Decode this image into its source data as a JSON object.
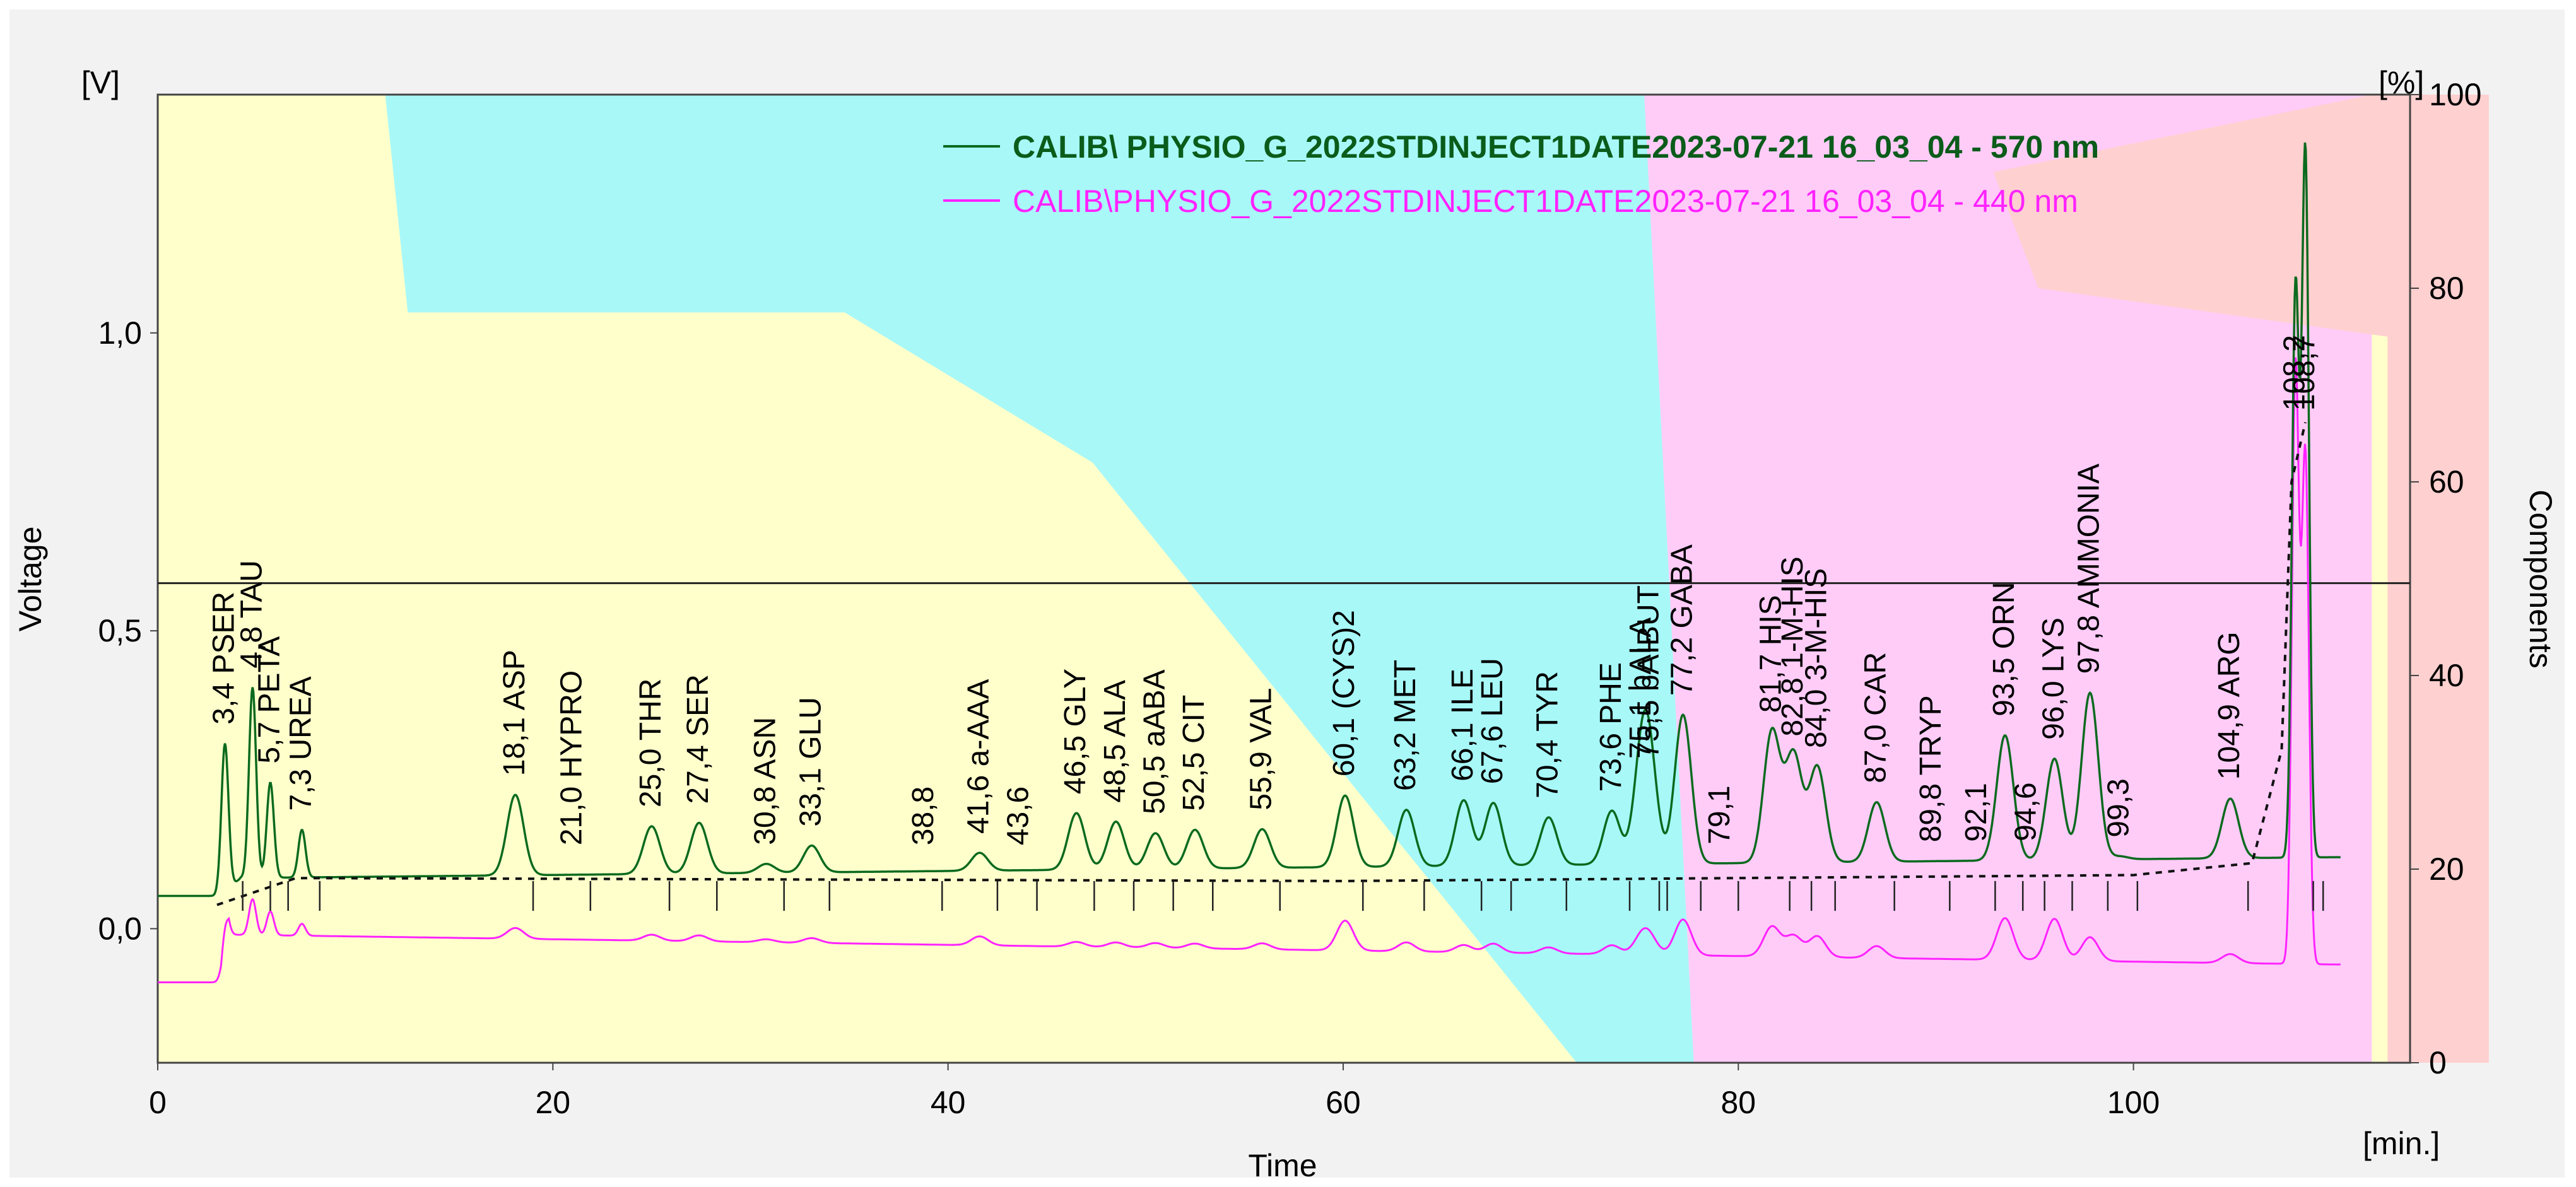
{
  "chart_data": {
    "type": "line",
    "title": "",
    "xlabel": "Time",
    "xunit": "[min.]",
    "ylabel": "Voltage",
    "yunit": "[V]",
    "y2label": "Components",
    "y2unit": "[%]",
    "xlim": [
      0,
      114
    ],
    "ylim": [
      -0.225,
      1.4
    ],
    "y2lim": [
      0,
      100
    ],
    "x_ticks": [
      {
        "v": 0,
        "t": "0"
      },
      {
        "v": 20,
        "t": "20"
      },
      {
        "v": 40,
        "t": "40"
      },
      {
        "v": 60,
        "t": "60"
      },
      {
        "v": 80,
        "t": "80"
      },
      {
        "v": 100,
        "t": "100"
      }
    ],
    "y_ticks": [
      {
        "v": 0,
        "t": "0,0"
      },
      {
        "v": 0.5,
        "t": "0,5"
      },
      {
        "v": 1.0,
        "t": "1,0"
      }
    ],
    "y2_ticks": [
      {
        "v": 0,
        "t": "0"
      },
      {
        "v": 20,
        "t": "20"
      },
      {
        "v": 40,
        "t": "40"
      },
      {
        "v": 60,
        "t": "60"
      },
      {
        "v": 80,
        "t": "80"
      },
      {
        "v": 100,
        "t": "100"
      }
    ],
    "reference_line": 0.58,
    "legend_position": "top-right",
    "series": [
      {
        "name": "CALIB\\ PHYSIO_G_2022STDINJECT1DATE2023-07-21 16_03_04 - 570 nm",
        "color": "#0a6a1e",
        "baseline": 0.055,
        "baseline_step": [
          [
            0,
            0.055
          ],
          [
            3.2,
            0.055
          ],
          [
            4.2,
            0.085
          ],
          [
            110,
            0.12
          ]
        ]
      },
      {
        "name": "CALIB\\PHYSIO_G_2022STDINJECT1DATE2023-07-21 16_03_04 - 440 nm",
        "color": "#ff22ff",
        "baseline": -0.09,
        "baseline_step": [
          [
            0,
            -0.09
          ],
          [
            3.2,
            -0.09
          ],
          [
            3.6,
            -0.01
          ],
          [
            110,
            -0.06
          ]
        ]
      }
    ],
    "gradient_regions": [
      {
        "name": "buffer-a",
        "color": "#ffffcc",
        "points": [
          [
            0,
            0
          ],
          [
            0,
            100
          ],
          [
            100,
            100
          ],
          [
            100,
            0
          ]
        ]
      },
      {
        "name": "buffer-b",
        "color": "#a8f8f8",
        "points": [
          [
            10.1,
            100
          ],
          [
            66,
            100
          ],
          [
            68.2,
            0
          ],
          [
            63,
            0
          ],
          [
            41.5,
            62
          ],
          [
            30.5,
            77.5
          ],
          [
            11.1,
            77.5
          ]
        ]
      },
      {
        "name": "buffer-c",
        "color": "#ffccf8",
        "points": [
          [
            66,
            100
          ],
          [
            98.3,
            100
          ],
          [
            98.3,
            0
          ],
          [
            68.2,
            0
          ]
        ]
      },
      {
        "name": "buffer-d",
        "color": "#ffd0d0",
        "points": [
          [
            98.3,
            100
          ],
          [
            103.5,
            100
          ],
          [
            103.5,
            0
          ],
          [
            99,
            0
          ],
          [
            99,
            75
          ],
          [
            83.5,
            80
          ],
          [
            81.5,
            92
          ]
        ]
      }
    ],
    "peaks": [
      {
        "t": 3.4,
        "label": "3,4 PSER",
        "h": 0.25,
        "h2": 0.05
      },
      {
        "t": 4.8,
        "label": "4,8 TAU",
        "h": 0.32,
        "h2": 0.06
      },
      {
        "t": 5.7,
        "label": "5,7 PETA",
        "h": 0.16,
        "h2": 0.04
      },
      {
        "t": 7.3,
        "label": "7,3 UREA",
        "h": 0.08,
        "h2": 0.02
      },
      {
        "t": 18.1,
        "label": "18,1 ASP",
        "h": 0.135,
        "h2": 0.018
      },
      {
        "t": 21.0,
        "label": "21,0 HYPRO",
        "h": 0.0,
        "h2": 0.0
      },
      {
        "t": 25.0,
        "label": "25,0 THR",
        "h": 0.08,
        "h2": 0.01
      },
      {
        "t": 27.4,
        "label": "27,4 SER",
        "h": 0.085,
        "h2": 0.01
      },
      {
        "t": 30.8,
        "label": "30,8 ASN",
        "h": 0.015,
        "h2": 0.005
      },
      {
        "t": 33.1,
        "label": "33,1 GLU",
        "h": 0.045,
        "h2": 0.008
      },
      {
        "t": 38.8,
        "label": "38,8",
        "h": 0.0,
        "h2": 0.0
      },
      {
        "t": 41.6,
        "label": "41,6 a-AAA",
        "h": 0.03,
        "h2": 0.015
      },
      {
        "t": 43.6,
        "label": "43,6",
        "h": 0.0,
        "h2": 0.0
      },
      {
        "t": 46.5,
        "label": "46,5 GLY",
        "h": 0.095,
        "h2": 0.008
      },
      {
        "t": 48.5,
        "label": "48,5 ALA",
        "h": 0.08,
        "h2": 0.008
      },
      {
        "t": 50.5,
        "label": "50,5 aABA",
        "h": 0.06,
        "h2": 0.008
      },
      {
        "t": 52.5,
        "label": "52,5 CIT",
        "h": 0.065,
        "h2": 0.008
      },
      {
        "t": 55.9,
        "label": "55,9 VAL",
        "h": 0.065,
        "h2": 0.01
      },
      {
        "t": 60.1,
        "label": "60,1 (CYS)2",
        "h": 0.12,
        "h2": 0.05
      },
      {
        "t": 63.2,
        "label": "63,2 MET",
        "h": 0.095,
        "h2": 0.015
      },
      {
        "t": 66.1,
        "label": "66,1 ILE",
        "h": 0.11,
        "h2": 0.012
      },
      {
        "t": 67.6,
        "label": "67,6 LEU",
        "h": 0.105,
        "h2": 0.015
      },
      {
        "t": 70.4,
        "label": "70,4 TYR",
        "h": 0.08,
        "h2": 0.01
      },
      {
        "t": 73.6,
        "label": "73,6 PHE",
        "h": 0.09,
        "h2": 0.015
      },
      {
        "t": 75.1,
        "label": "75,1 bALA",
        "h": 0.145,
        "h2": 0.025
      },
      {
        "t": 75.5,
        "label": "75,5 bAIBUT",
        "h": 0.145,
        "h2": 0.025
      },
      {
        "t": 77.2,
        "label": "77,2 GABA",
        "h": 0.25,
        "h2": 0.06
      },
      {
        "t": 79.1,
        "label": "79,1",
        "h": 0.0,
        "h2": 0.0
      },
      {
        "t": 81.7,
        "label": "81,7 HIS",
        "h": 0.22,
        "h2": 0.05
      },
      {
        "t": 82.8,
        "label": "82,8 1-M-HIS",
        "h": 0.18,
        "h2": 0.035
      },
      {
        "t": 84.0,
        "label": "84,0 3-M-HIS",
        "h": 0.16,
        "h2": 0.035
      },
      {
        "t": 87.0,
        "label": "87,0 CAR",
        "h": 0.1,
        "h2": 0.02
      },
      {
        "t": 89.8,
        "label": "89,8 TRYP",
        "h": 0.0,
        "h2": 0.0
      },
      {
        "t": 92.1,
        "label": "92,1",
        "h": 0.0,
        "h2": 0.0
      },
      {
        "t": 93.5,
        "label": "93,5 ORN",
        "h": 0.21,
        "h2": 0.07
      },
      {
        "t": 94.6,
        "label": "94,6",
        "h": 0.0,
        "h2": 0.0
      },
      {
        "t": 96.0,
        "label": "96,0 LYS",
        "h": 0.17,
        "h2": 0.07
      },
      {
        "t": 97.8,
        "label": "97,8 AMMONIA",
        "h": 0.28,
        "h2": 0.04
      },
      {
        "t": 99.3,
        "label": "99,3",
        "h": 0.005,
        "h2": 0.0
      },
      {
        "t": 104.9,
        "label": "104,9 ARG",
        "h": 0.1,
        "h2": 0.015
      },
      {
        "t": 108.2,
        "label": "108,2",
        "h": 0.95,
        "h2": 1.0
      },
      {
        "t": 108.7,
        "label": "108,7",
        "h": 1.18,
        "h2": 0.85
      }
    ]
  }
}
